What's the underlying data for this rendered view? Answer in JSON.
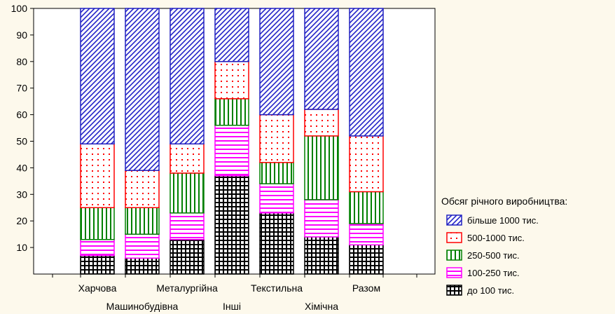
{
  "chart_data": {
    "type": "bar",
    "stacked": true,
    "categories": [
      "Харчова",
      "Машинобудівна",
      "Металургійна",
      "Інші",
      "Текстильна",
      "Хімічна",
      "Разом"
    ],
    "ylim": [
      0,
      100
    ],
    "yticks": [
      10,
      20,
      30,
      40,
      50,
      60,
      70,
      80,
      90,
      100
    ],
    "grid": false,
    "legend_title": "Обсяг річного виробництва:",
    "legend_position": "right",
    "series": [
      {
        "name": "до 100 тис.",
        "color": "#000000",
        "pattern": "grid",
        "values": [
          7,
          6,
          13,
          37,
          23,
          14,
          11
        ]
      },
      {
        "name": "100-250 тис.",
        "color": "#ff00ff",
        "pattern": "hlines",
        "values": [
          6,
          9,
          10,
          19,
          11,
          14,
          8
        ]
      },
      {
        "name": "250-500 тис.",
        "color": "#008000",
        "pattern": "vlines",
        "values": [
          12,
          10,
          15,
          10,
          8,
          24,
          12
        ]
      },
      {
        "name": "500-1000 тис.",
        "color": "#ff0000",
        "pattern": "dots",
        "values": [
          24,
          14,
          11,
          14,
          18,
          10,
          21
        ]
      },
      {
        "name": "більше 1000 тис.",
        "color": "#2020c0",
        "pattern": "diagonal",
        "values": [
          51,
          61,
          51,
          20,
          40,
          38,
          48
        ]
      }
    ]
  }
}
